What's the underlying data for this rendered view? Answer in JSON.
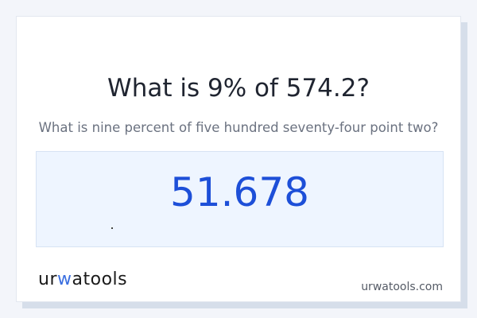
{
  "title": "What is 9% of 574.2?",
  "subtitle": "What is nine percent of five hundred seventy-four point two?",
  "result": "51.678",
  "logo": {
    "prefix": "ur",
    "accent": "w",
    "suffix": "atools"
  },
  "site": "urwatools.com",
  "colors": {
    "accent": "#1d4fd8",
    "result_bg": "#eef5ff",
    "background": "#f3f5fa"
  }
}
